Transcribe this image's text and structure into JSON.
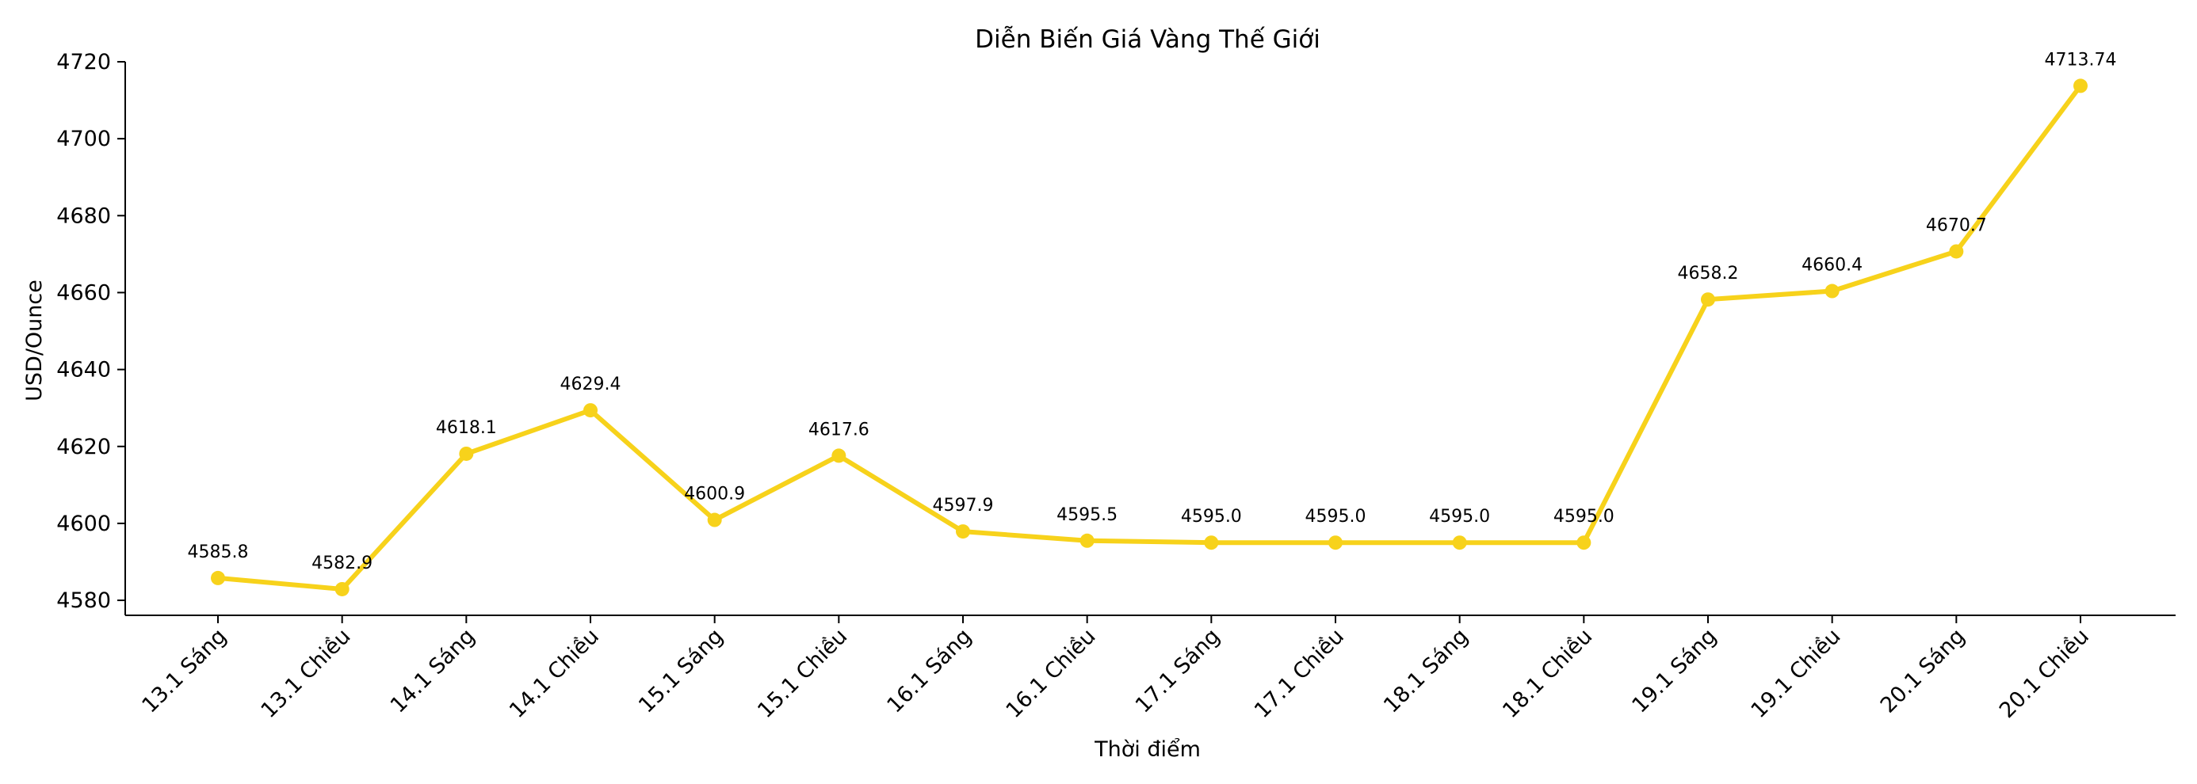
{
  "chart_data": {
    "type": "line",
    "title": "Diễn Biến Giá Vàng Thế Giới",
    "xlabel": "Thời điểm",
    "ylabel": "USD/Ounce",
    "categories": [
      "13.1 Sáng",
      "13.1 Chiều",
      "14.1 Sáng",
      "14.1 Chiều",
      "15.1 Sáng",
      "15.1 Chiều",
      "16.1 Sáng",
      "16.1 Chiều",
      "17.1 Sáng",
      "17.1 Chiều",
      "18.1 Sáng",
      "18.1 Chiều",
      "19.1 Sáng",
      "19.1 Chiều",
      "20.1 Sáng",
      "20.1 Chiều"
    ],
    "series": [
      {
        "values": [
          4585.8,
          4582.9,
          4618.1,
          4629.4,
          4600.9,
          4617.6,
          4597.9,
          4595.5,
          4595.0,
          4595.0,
          4595.0,
          4595.0,
          4658.2,
          4660.4,
          4670.7,
          4713.74
        ],
        "labels": [
          "4585.8",
          "4582.9",
          "4618.1",
          "4629.4",
          "4600.9",
          "4617.6",
          "4597.9",
          "4595.5",
          "4595.0",
          "4595.0",
          "4595.0",
          "4595.0",
          "4658.2",
          "4660.4",
          "4670.7",
          "4713.74"
        ],
        "color": "#F7D21B"
      }
    ],
    "yticks": [
      "4580",
      "4600",
      "4620",
      "4640",
      "4660",
      "4680",
      "4700",
      "4720"
    ],
    "ylim": [
      4576.1,
      4720
    ],
    "grid": false,
    "legend": false
  }
}
